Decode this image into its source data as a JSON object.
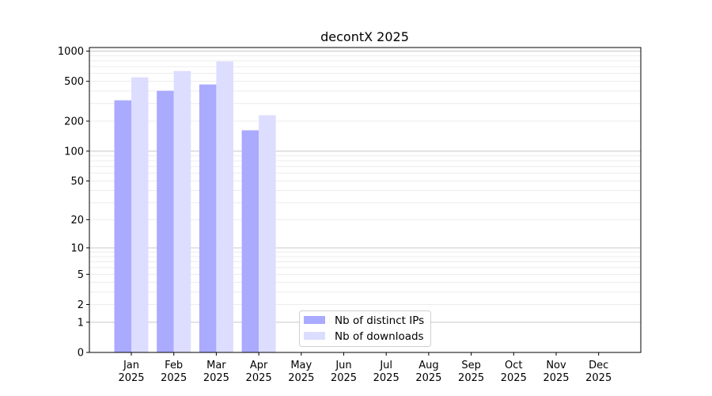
{
  "chart_data": {
    "type": "bar",
    "title": "decontX 2025",
    "xlabel": "",
    "ylabel": "",
    "yscale": "log(1+y)",
    "ylim": [
      0,
      1100
    ],
    "yticks": [
      0,
      1,
      2,
      5,
      10,
      20,
      50,
      100,
      200,
      500,
      1000
    ],
    "grid": true,
    "legend_position": "bottom-center",
    "categories": [
      "Jan\n2025",
      "Feb\n2025",
      "Mar\n2025",
      "Apr\n2025",
      "May\n2025",
      "Jun\n2025",
      "Jul\n2025",
      "Aug\n2025",
      "Sep\n2025",
      "Oct\n2025",
      "Nov\n2025",
      "Dec\n2025"
    ],
    "series": [
      {
        "name": "Nb of distinct IPs",
        "color": "#aaaaff",
        "values": [
          323,
          402,
          465,
          162,
          null,
          null,
          null,
          null,
          null,
          null,
          null,
          null
        ]
      },
      {
        "name": "Nb of downloads",
        "color": "#ddddff",
        "values": [
          548,
          634,
          788,
          229,
          null,
          null,
          null,
          null,
          null,
          null,
          null,
          null
        ]
      }
    ]
  }
}
